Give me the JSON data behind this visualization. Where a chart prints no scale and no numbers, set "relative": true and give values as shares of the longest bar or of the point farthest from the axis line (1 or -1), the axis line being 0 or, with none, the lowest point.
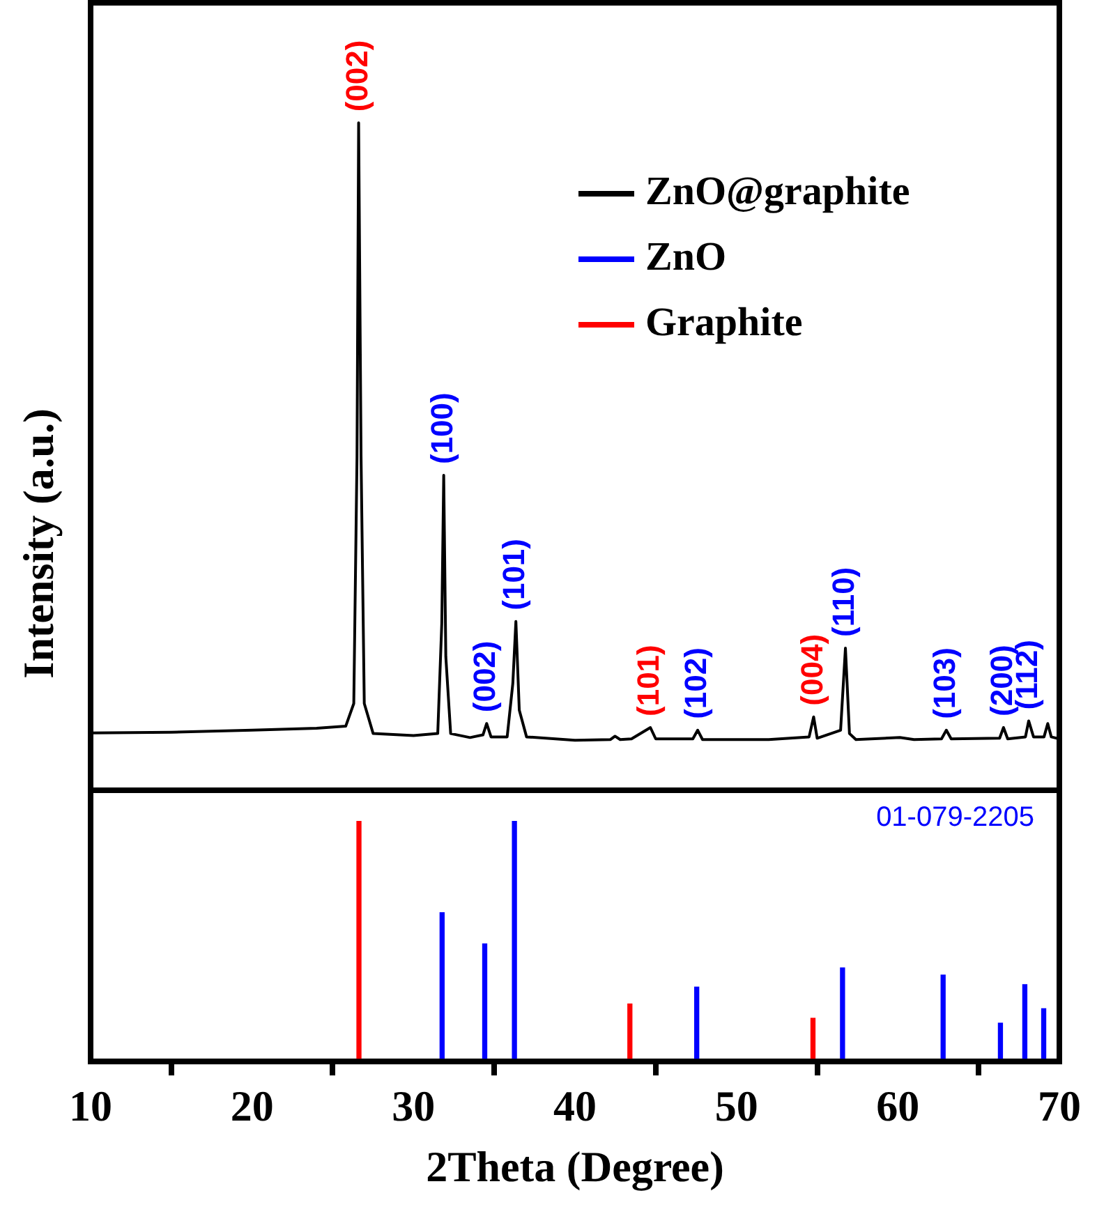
{
  "chart_data": [
    {
      "type": "line",
      "ylabel": "Intensity (a.u.)",
      "relative": true,
      "xlim": [
        10,
        70
      ],
      "tick_labels": false,
      "legend": "top right",
      "series": [
        {
          "name": "ZnO@graphite",
          "color": "#000000",
          "x": [
            10,
            15,
            20,
            24,
            25.8,
            26.3,
            26.5,
            26.6,
            26.75,
            26.95,
            27.5,
            30,
            31.5,
            31.75,
            31.87,
            32.0,
            32.3,
            33.5,
            34.3,
            34.53,
            34.8,
            35.8,
            36.15,
            36.34,
            36.55,
            37.0,
            40,
            42.2,
            42.48,
            42.8,
            43.5,
            44.67,
            45,
            47.3,
            47.6,
            47.9,
            52,
            54.5,
            54.78,
            55.0,
            56.45,
            56.75,
            57.0,
            57.4,
            60.12,
            61,
            62.7,
            63.0,
            63.3,
            66.3,
            66.54,
            66.8,
            67.9,
            68.1,
            68.4,
            69.05,
            69.28,
            69.5,
            70
          ],
          "values": [
            0.086,
            0.087,
            0.09,
            0.093,
            0.096,
            0.13,
            0.5,
            1.0,
            0.5,
            0.13,
            0.085,
            0.082,
            0.085,
            0.25,
            0.472,
            0.2,
            0.085,
            0.079,
            0.083,
            0.1,
            0.08,
            0.08,
            0.16,
            0.253,
            0.12,
            0.08,
            0.075,
            0.076,
            0.081,
            0.076,
            0.077,
            0.094,
            0.077,
            0.077,
            0.09,
            0.076,
            0.076,
            0.08,
            0.11,
            0.078,
            0.09,
            0.213,
            0.085,
            0.076,
            0.079,
            0.076,
            0.077,
            0.09,
            0.077,
            0.078,
            0.094,
            0.077,
            0.08,
            0.104,
            0.08,
            0.08,
            0.1,
            0.08,
            0.077
          ]
        }
      ],
      "annotations": [
        {
          "text": "(002)",
          "x": 26.6,
          "y": 1.0
        },
        {
          "text": "(100)",
          "x": 31.87,
          "y": 0.472
        },
        {
          "text": "(002)",
          "x": 34.53,
          "y": 0.1
        },
        {
          "text": "(101)",
          "x": 36.34,
          "y": 0.253
        },
        {
          "text": "(101)",
          "x": 44.67,
          "y": 0.094
        },
        {
          "text": "(102)",
          "x": 47.6,
          "y": 0.09
        },
        {
          "text": "(004)",
          "x": 54.78,
          "y": 0.11
        },
        {
          "text": "(110)",
          "x": 56.75,
          "y": 0.213
        },
        {
          "text": "(103)",
          "x": 63.0,
          "y": 0.09
        },
        {
          "text": "(200)",
          "x": 66.54,
          "y": 0.094
        },
        {
          "text": "(112)",
          "x": 68.1,
          "y": 0.104
        }
      ]
    },
    {
      "type": "bar",
      "relative": true,
      "xlim": [
        10,
        70
      ],
      "xticks": [
        10,
        20,
        30,
        40,
        50,
        60,
        70
      ],
      "xlabel": "2Theta (Degree)",
      "tick_labels": "x",
      "series": [
        {
          "name": "ZnO",
          "color": "#0000ff",
          "x": [
            31.77,
            34.41,
            36.25,
            47.54,
            56.57,
            62.8,
            66.35,
            67.86,
            69.03
          ],
          "values": [
            0.62,
            0.49,
            1.0,
            0.31,
            0.39,
            0.36,
            0.16,
            0.32,
            0.22
          ]
        },
        {
          "name": "Graphite",
          "color": "#ff0000",
          "x": [
            26.62,
            43.4,
            54.74
          ],
          "values": [
            1.0,
            0.24,
            0.18
          ]
        }
      ],
      "annotations": [
        "01-079-2205"
      ]
    }
  ]
}
